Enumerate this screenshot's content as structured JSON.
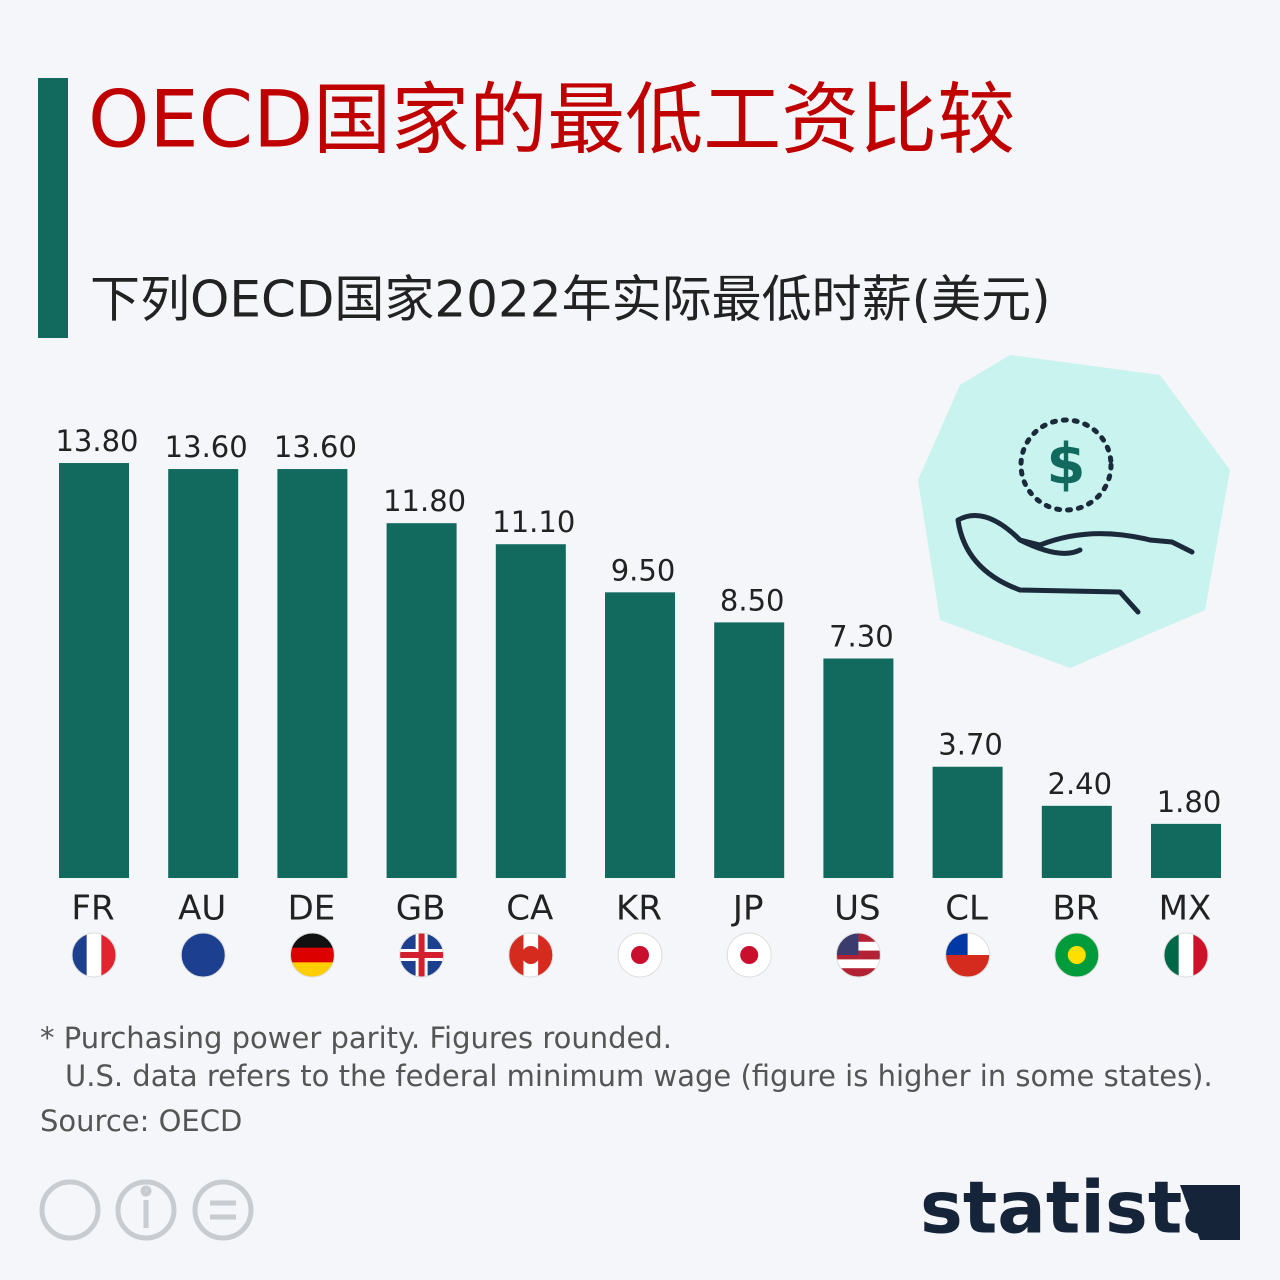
{
  "chart_data": {
    "type": "bar",
    "title": "OECD国家的最低工资比较",
    "subtitle": "下列OECD国家2022年实际最低时薪(美元)",
    "categories": [
      "FR",
      "AU",
      "DE",
      "GB",
      "CA",
      "KR",
      "JP",
      "US",
      "CL",
      "BR",
      "MX"
    ],
    "values": [
      13.8,
      13.6,
      13.6,
      11.8,
      11.1,
      9.5,
      8.5,
      7.3,
      3.7,
      2.4,
      1.8
    ],
    "value_labels": [
      "13.80",
      "13.60",
      "13.60",
      "11.80",
      "11.10",
      "9.50",
      "8.50",
      "7.30",
      "3.70",
      "2.40",
      "1.80"
    ],
    "color": "#116a5d",
    "footnotes": [
      "* Purchasing power parity. Figures rounded.",
      "U.S. data refers to the federal minimum wage (figure is higher in some states)."
    ],
    "source": "Source: OECD",
    "brand": "statista"
  }
}
